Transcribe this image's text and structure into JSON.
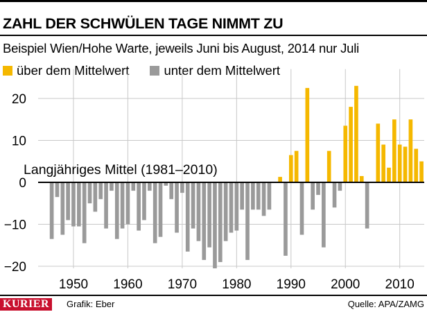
{
  "header": {
    "title": "ZAHL DER SCHWÜLEN TAGE NIMMT ZU",
    "subtitle": "Beispiel Wien/Hohe Warte, jeweils Juni bis August, 2014 nur Juli"
  },
  "legend": {
    "above_label": "über dem Mittelwert",
    "below_label": "unter dem Mittelwert"
  },
  "colors": {
    "above": "#f5b800",
    "below": "#9a9a9a",
    "grid": "#c8c8c8",
    "brand": "#c8102e"
  },
  "chart_data": {
    "type": "bar",
    "reference_label": "Langjähriges Mittel (1981–2010)",
    "xticks": [
      1950,
      1960,
      1970,
      1980,
      1990,
      2000,
      2010
    ],
    "yticks": [
      20,
      10,
      0,
      -10,
      -20
    ],
    "ylim": [
      -20.5,
      27
    ],
    "xlim": [
      1944,
      2014
    ],
    "grid": true,
    "legend_position": "top-left",
    "years": [
      1946,
      1947,
      1948,
      1949,
      1950,
      1951,
      1952,
      1953,
      1954,
      1955,
      1956,
      1957,
      1958,
      1959,
      1960,
      1961,
      1962,
      1963,
      1964,
      1965,
      1966,
      1967,
      1968,
      1969,
      1970,
      1971,
      1972,
      1973,
      1974,
      1975,
      1976,
      1977,
      1978,
      1979,
      1980,
      1981,
      1982,
      1983,
      1984,
      1985,
      1986,
      1987,
      1988,
      1989,
      1990,
      1991,
      1992,
      1993,
      1994,
      1995,
      1996,
      1997,
      1998,
      1999,
      2000,
      2001,
      2002,
      2003,
      2004,
      2005,
      2006,
      2007,
      2008,
      2009,
      2010,
      2011,
      2012,
      2013,
      2014
    ],
    "values": [
      -13.5,
      -3.5,
      -12.5,
      -9,
      -10.5,
      -10.5,
      -14.5,
      -5,
      -7,
      -4,
      -11,
      -2,
      -13.5,
      -11,
      -10,
      -2,
      -11.5,
      -9,
      -2,
      -14.5,
      -13,
      -0.8,
      -4,
      -12,
      -2.5,
      -16.5,
      -11,
      -14,
      -18.5,
      -15.5,
      -20.5,
      -19,
      -14,
      -12,
      -11.5,
      -6.5,
      -18.5,
      -6.5,
      -6.5,
      -8,
      -6.5,
      0,
      1.3,
      -17.5,
      6.5,
      7.5,
      -12.5,
      22.5,
      -6.5,
      -3,
      -15.5,
      7.5,
      -6,
      -2,
      13.5,
      18,
      23,
      1.5,
      -11,
      0,
      14,
      9,
      3.5,
      15,
      9,
      8.5,
      15,
      8,
      5
    ]
  },
  "footer": {
    "logo": "KURIER",
    "credit": "Grafik: Eber",
    "source": "Quelle: APA/ZAMG"
  }
}
